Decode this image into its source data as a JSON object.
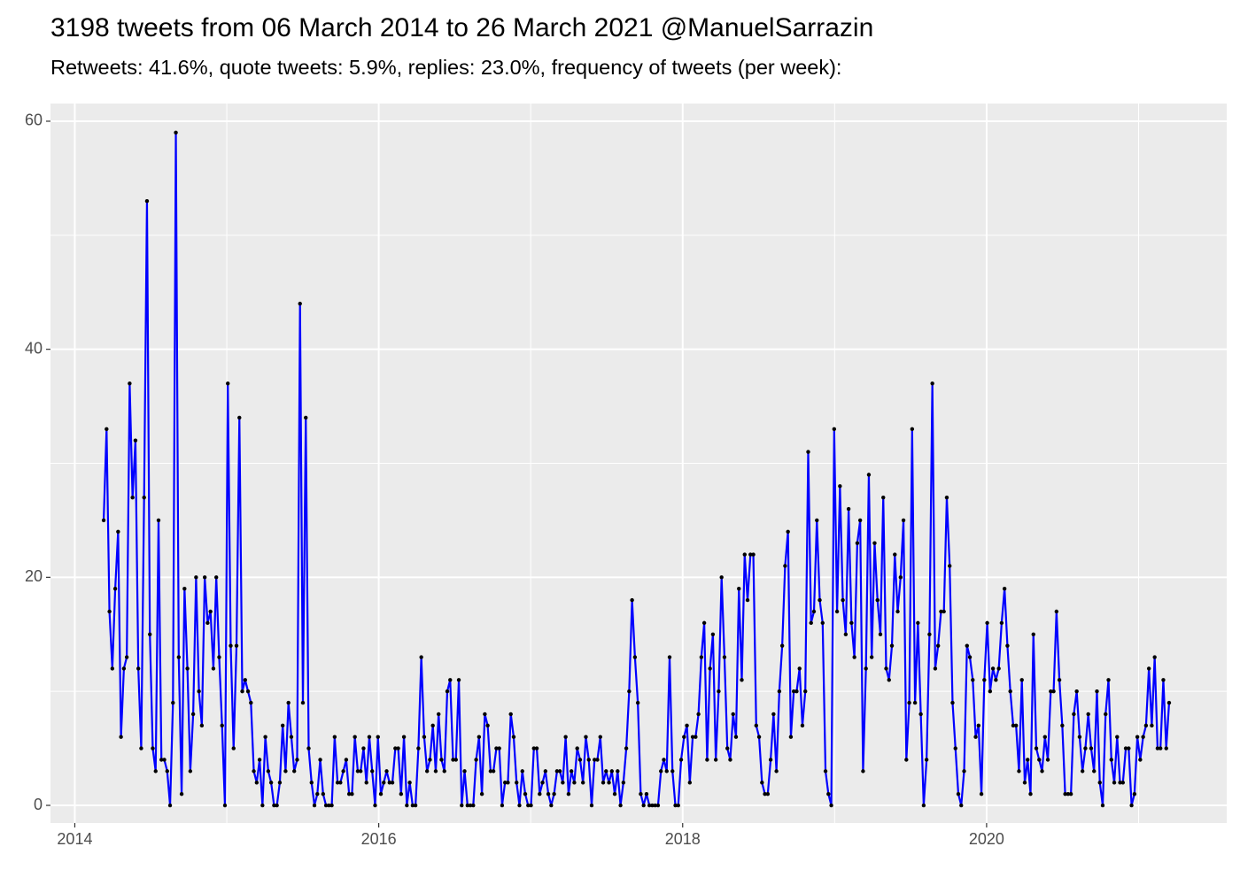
{
  "chart_data": {
    "type": "line",
    "title": "3198 tweets from 06 March 2014 to 26 March 2021 @ManuelSarrazin",
    "subtitle": "Retweets: 41.6%, quote tweets: 5.9%, replies: 23.0%, frequency of tweets (per week):",
    "color": "#0000ff",
    "point_color": "#000000",
    "grid": true,
    "xlim": [
      2013.84,
      2021.58
    ],
    "ylim": [
      -1.55,
      61.55
    ],
    "xticks": [
      2014,
      2016,
      2018,
      2020
    ],
    "yticks": [
      0,
      20,
      40,
      60
    ],
    "minor_xticks": [
      2015,
      2017,
      2019,
      2021
    ],
    "minor_yticks": [
      10,
      30,
      50
    ],
    "x": [
      2014.19,
      2014.209,
      2014.228,
      2014.247,
      2014.266,
      2014.285,
      2014.304,
      2014.323,
      2014.342,
      2014.361,
      2014.38,
      2014.399,
      2014.418,
      2014.437,
      2014.456,
      2014.475,
      2014.494,
      2014.513,
      2014.532,
      2014.551,
      2014.57,
      2014.589,
      2014.608,
      2014.627,
      2014.646,
      2014.665,
      2014.684,
      2014.703,
      2014.722,
      2014.741,
      2014.76,
      2014.779,
      2014.798,
      2014.817,
      2014.836,
      2014.855,
      2014.874,
      2014.893,
      2014.912,
      2014.931,
      2014.95,
      2014.969,
      2014.988,
      2015.007,
      2015.026,
      2015.045,
      2015.064,
      2015.083,
      2015.102,
      2015.121,
      2015.14,
      2015.159,
      2015.178,
      2015.197,
      2015.216,
      2015.235,
      2015.254,
      2015.273,
      2015.292,
      2015.311,
      2015.33,
      2015.349,
      2015.368,
      2015.387,
      2015.406,
      2015.425,
      2015.444,
      2015.463,
      2015.482,
      2015.501,
      2015.52,
      2015.539,
      2015.558,
      2015.577,
      2015.596,
      2015.615,
      2015.634,
      2015.653,
      2015.672,
      2015.691,
      2015.71,
      2015.729,
      2015.748,
      2015.767,
      2015.786,
      2015.805,
      2015.824,
      2015.843,
      2015.862,
      2015.881,
      2015.9,
      2015.919,
      2015.938,
      2015.957,
      2015.976,
      2015.995,
      2016.014,
      2016.033,
      2016.052,
      2016.071,
      2016.09,
      2016.109,
      2016.128,
      2016.147,
      2016.166,
      2016.185,
      2016.204,
      2016.223,
      2016.242,
      2016.261,
      2016.28,
      2016.299,
      2016.318,
      2016.337,
      2016.356,
      2016.375,
      2016.394,
      2016.413,
      2016.432,
      2016.451,
      2016.47,
      2016.489,
      2016.508,
      2016.527,
      2016.546,
      2016.565,
      2016.584,
      2016.603,
      2016.622,
      2016.641,
      2016.66,
      2016.679,
      2016.698,
      2016.717,
      2016.736,
      2016.755,
      2016.774,
      2016.793,
      2016.812,
      2016.831,
      2016.85,
      2016.869,
      2016.888,
      2016.907,
      2016.926,
      2016.945,
      2016.964,
      2016.983,
      2017.002,
      2017.021,
      2017.04,
      2017.059,
      2017.078,
      2017.097,
      2017.116,
      2017.135,
      2017.154,
      2017.173,
      2017.192,
      2017.211,
      2017.23,
      2017.249,
      2017.268,
      2017.287,
      2017.306,
      2017.325,
      2017.344,
      2017.363,
      2017.382,
      2017.401,
      2017.42,
      2017.439,
      2017.458,
      2017.477,
      2017.496,
      2017.515,
      2017.534,
      2017.553,
      2017.572,
      2017.591,
      2017.61,
      2017.629,
      2017.648,
      2017.667,
      2017.686,
      2017.705,
      2017.724,
      2017.743,
      2017.762,
      2017.781,
      2017.8,
      2017.819,
      2017.838,
      2017.857,
      2017.876,
      2017.895,
      2017.914,
      2017.933,
      2017.952,
      2017.971,
      2017.99,
      2018.009,
      2018.028,
      2018.047,
      2018.066,
      2018.085,
      2018.104,
      2018.123,
      2018.142,
      2018.161,
      2018.18,
      2018.199,
      2018.218,
      2018.237,
      2018.256,
      2018.275,
      2018.294,
      2018.313,
      2018.332,
      2018.351,
      2018.37,
      2018.389,
      2018.408,
      2018.427,
      2018.446,
      2018.465,
      2018.484,
      2018.503,
      2018.522,
      2018.541,
      2018.56,
      2018.579,
      2018.598,
      2018.617,
      2018.636,
      2018.655,
      2018.674,
      2018.693,
      2018.712,
      2018.731,
      2018.75,
      2018.769,
      2018.788,
      2018.807,
      2018.826,
      2018.845,
      2018.864,
      2018.883,
      2018.902,
      2018.921,
      2018.94,
      2018.959,
      2018.978,
      2018.997,
      2019.016,
      2019.035,
      2019.054,
      2019.073,
      2019.092,
      2019.111,
      2019.13,
      2019.149,
      2019.168,
      2019.187,
      2019.206,
      2019.225,
      2019.244,
      2019.263,
      2019.282,
      2019.301,
      2019.32,
      2019.339,
      2019.358,
      2019.377,
      2019.396,
      2019.415,
      2019.434,
      2019.453,
      2019.472,
      2019.491,
      2019.51,
      2019.529,
      2019.548,
      2019.567,
      2019.586,
      2019.605,
      2019.624,
      2019.643,
      2019.662,
      2019.681,
      2019.7,
      2019.719,
      2019.738,
      2019.757,
      2019.776,
      2019.795,
      2019.814,
      2019.833,
      2019.852,
      2019.871,
      2019.89,
      2019.909,
      2019.928,
      2019.947,
      2019.966,
      2019.985,
      2020.004,
      2020.023,
      2020.042,
      2020.061,
      2020.08,
      2020.099,
      2020.118,
      2020.137,
      2020.156,
      2020.175,
      2020.194,
      2020.213,
      2020.232,
      2020.251,
      2020.27,
      2020.289,
      2020.308,
      2020.327,
      2020.346,
      2020.365,
      2020.384,
      2020.403,
      2020.422,
      2020.441,
      2020.46,
      2020.479,
      2020.498,
      2020.517,
      2020.536,
      2020.555,
      2020.574,
      2020.593,
      2020.612,
      2020.631,
      2020.65,
      2020.669,
      2020.688,
      2020.707,
      2020.726,
      2020.745,
      2020.764,
      2020.783,
      2020.802,
      2020.821,
      2020.84,
      2020.859,
      2020.878,
      2020.897,
      2020.916,
      2020.935,
      2020.954,
      2020.973,
      2020.992,
      2021.011,
      2021.03,
      2021.049,
      2021.068,
      2021.087,
      2021.106,
      2021.125,
      2021.144,
      2021.163,
      2021.182,
      2021.201
    ],
    "values": [
      25,
      33,
      17,
      12,
      19,
      24,
      6,
      12,
      13,
      37,
      27,
      32,
      12,
      5,
      27,
      53,
      15,
      5,
      3,
      25,
      4,
      4,
      3,
      0,
      9,
      59,
      13,
      1,
      19,
      12,
      3,
      8,
      20,
      10,
      7,
      20,
      16,
      17,
      12,
      20,
      13,
      7,
      0,
      37,
      14,
      5,
      14,
      34,
      10,
      11,
      10,
      9,
      3,
      2,
      4,
      0,
      6,
      3,
      2,
      0,
      0,
      2,
      7,
      3,
      9,
      6,
      3,
      4,
      44,
      9,
      34,
      5,
      2,
      0,
      1,
      4,
      1,
      0,
      0,
      0,
      6,
      2,
      2,
      3,
      4,
      1,
      1,
      6,
      3,
      3,
      5,
      2,
      6,
      3,
      0,
      6,
      1,
      2,
      3,
      2,
      2,
      5,
      5,
      1,
      6,
      0,
      2,
      0,
      0,
      5,
      13,
      6,
      3,
      4,
      7,
      3,
      8,
      4,
      3,
      10,
      11,
      4,
      4,
      11,
      0,
      3,
      0,
      0,
      0,
      4,
      6,
      1,
      8,
      7,
      3,
      3,
      5,
      5,
      0,
      2,
      2,
      8,
      6,
      2,
      0,
      3,
      1,
      0,
      0,
      5,
      5,
      1,
      2,
      3,
      1,
      0,
      1,
      3,
      3,
      2,
      6,
      1,
      3,
      2,
      5,
      4,
      2,
      6,
      4,
      0,
      4,
      4,
      6,
      2,
      3,
      2,
      3,
      1,
      3,
      0,
      2,
      5,
      10,
      18,
      13,
      9,
      1,
      0,
      1,
      0,
      0,
      0,
      0,
      3,
      4,
      3,
      13,
      3,
      0,
      0,
      4,
      6,
      7,
      2,
      6,
      6,
      8,
      13,
      16,
      4,
      12,
      15,
      4,
      10,
      20,
      13,
      5,
      4,
      8,
      6,
      19,
      11,
      22,
      18,
      22,
      22,
      7,
      6,
      2,
      1,
      1,
      4,
      8,
      3,
      10,
      14,
      21,
      24,
      6,
      10,
      10,
      12,
      7,
      10,
      31,
      16,
      17,
      25,
      18,
      16,
      3,
      1,
      0,
      33,
      17,
      28,
      18,
      15,
      26,
      16,
      13,
      23,
      25,
      3,
      12,
      29,
      13,
      23,
      18,
      15,
      27,
      12,
      11,
      14,
      22,
      17,
      20,
      25,
      4,
      9,
      33,
      9,
      16,
      8,
      0,
      4,
      15,
      37,
      12,
      14,
      17,
      17,
      27,
      21,
      9,
      5,
      1,
      0,
      3,
      14,
      13,
      11,
      6,
      7,
      1,
      11,
      16,
      10,
      12,
      11,
      12,
      16,
      19,
      14,
      10,
      7,
      7,
      3,
      11,
      2,
      4,
      1,
      15,
      5,
      4,
      3,
      6,
      4,
      10,
      10,
      17,
      11,
      7,
      1,
      1,
      1,
      8,
      10,
      6,
      3,
      5,
      8,
      5,
      3,
      10,
      2,
      0,
      8,
      11,
      4,
      2,
      6,
      2,
      2,
      5,
      5,
      0,
      1,
      6,
      4,
      6,
      7,
      12,
      7,
      13,
      5,
      5,
      11,
      5,
      9
    ]
  }
}
